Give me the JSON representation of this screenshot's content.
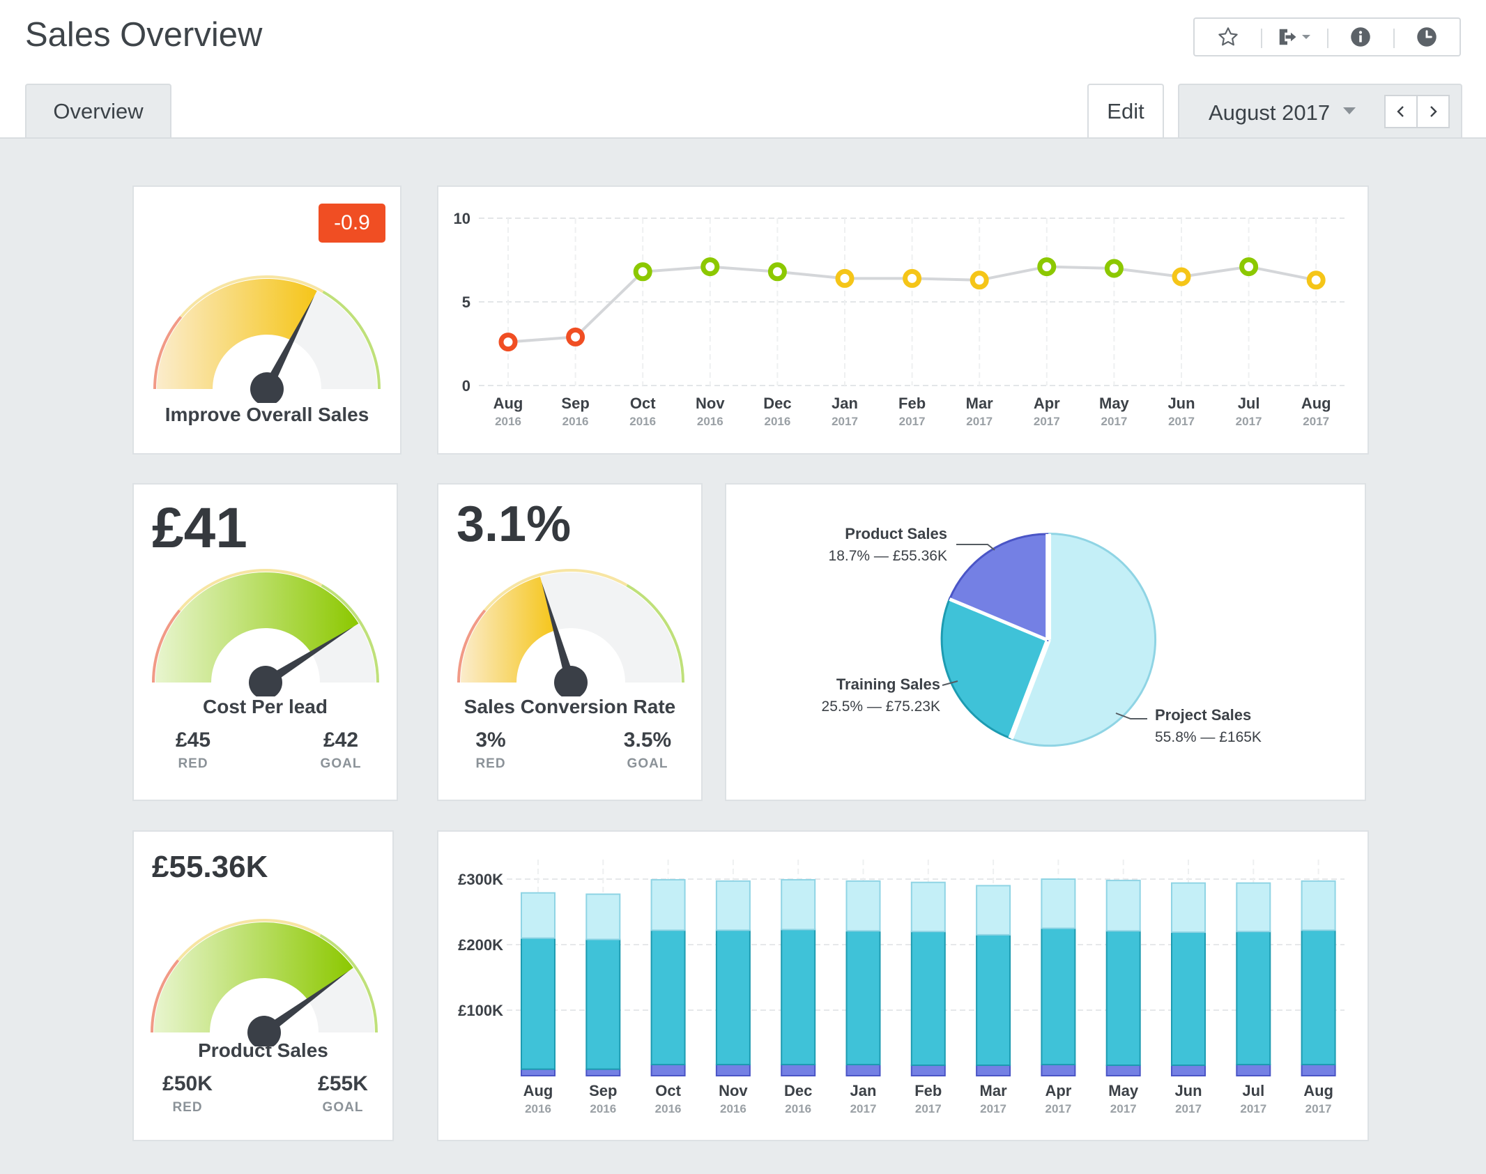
{
  "header": {
    "title": "Sales Overview",
    "toolbar": [
      {
        "icon": "star-icon"
      },
      {
        "icon": "export-icon"
      },
      {
        "icon": "info-icon"
      },
      {
        "icon": "clock-icon"
      }
    ]
  },
  "tabs": {
    "overview": "Overview"
  },
  "edit_label": "Edit",
  "period": {
    "label": "August 2017"
  },
  "months": [
    {
      "m": "Aug",
      "y": "2016"
    },
    {
      "m": "Sep",
      "y": "2016"
    },
    {
      "m": "Oct",
      "y": "2016"
    },
    {
      "m": "Nov",
      "y": "2016"
    },
    {
      "m": "Dec",
      "y": "2016"
    },
    {
      "m": "Jan",
      "y": "2017"
    },
    {
      "m": "Feb",
      "y": "2017"
    },
    {
      "m": "Mar",
      "y": "2017"
    },
    {
      "m": "Apr",
      "y": "2017"
    },
    {
      "m": "May",
      "y": "2017"
    },
    {
      "m": "Jun",
      "y": "2017"
    },
    {
      "m": "Jul",
      "y": "2017"
    },
    {
      "m": "Aug",
      "y": "2017"
    }
  ],
  "kpis": {
    "improve": {
      "label": "Improve Overall Sales",
      "badge": "-0.9",
      "fraction": 0.65
    },
    "cpl": {
      "value": "£41",
      "label": "Cost Per lead",
      "red_value": "£45",
      "red_label": "RED",
      "goal_value": "£42",
      "goal_label": "GOAL",
      "fraction": 0.82
    },
    "conv": {
      "value": "3.1%",
      "label": "Sales Conversion Rate",
      "red_value": "3%",
      "red_label": "RED",
      "goal_value": "3.5%",
      "goal_label": "GOAL",
      "fraction": 0.41
    },
    "product": {
      "value": "£55.36K",
      "label": "Product Sales",
      "red_value": "£50K",
      "red_label": "RED",
      "goal_value": "£55K",
      "goal_label": "GOAL",
      "fraction": 0.8
    }
  },
  "colors": {
    "red": "#f04e23",
    "yellow": "#f5c518",
    "green": "#8cc800",
    "project": "#c4eff7",
    "training": "#3fc2d8",
    "product": "#7480e4",
    "needle": "#3a3f47",
    "line": "#d4d6d9"
  },
  "chart_data": [
    {
      "type": "line",
      "title": "",
      "categories": [
        "Aug 2016",
        "Sep 2016",
        "Oct 2016",
        "Nov 2016",
        "Dec 2016",
        "Jan 2017",
        "Feb 2017",
        "Mar 2017",
        "Apr 2017",
        "May 2017",
        "Jun 2017",
        "Jul 2017",
        "Aug 2017"
      ],
      "values": [
        2.6,
        2.9,
        6.8,
        7.1,
        6.8,
        6.4,
        6.4,
        6.3,
        7.1,
        7.0,
        6.5,
        7.1,
        6.3
      ],
      "point_status": [
        "red",
        "red",
        "green",
        "green",
        "green",
        "yellow",
        "yellow",
        "yellow",
        "green",
        "green",
        "yellow",
        "green",
        "yellow"
      ],
      "ylim": [
        0,
        10
      ],
      "yticks": [
        {
          "v": 0,
          "label": "0"
        },
        {
          "v": 5,
          "label": "5"
        },
        {
          "v": 10,
          "label": "10"
        }
      ]
    },
    {
      "type": "pie",
      "slices": [
        {
          "name": "Project Sales",
          "detail": "55.8% — £165K",
          "percent": 55.8,
          "color": "#c4eff7",
          "stroke": "#8fd4e4"
        },
        {
          "name": "Training Sales",
          "detail": "25.5% — £75.23K",
          "percent": 25.5,
          "color": "#3fc2d8",
          "stroke": "#1d9bb1"
        },
        {
          "name": "Product Sales",
          "detail": "18.7% — £55.36K",
          "percent": 18.7,
          "color": "#7480e4",
          "stroke": "#4a55c6"
        }
      ]
    },
    {
      "type": "bar",
      "stacked": true,
      "categories": [
        "Aug 2016",
        "Sep 2016",
        "Oct 2016",
        "Nov 2016",
        "Dec 2016",
        "Jan 2017",
        "Feb 2017",
        "Mar 2017",
        "Apr 2017",
        "May 2017",
        "Jun 2017",
        "Jul 2017",
        "Aug 2017"
      ],
      "series": [
        {
          "name": "Product Sales",
          "color": "#7480e4",
          "values": [
            10,
            10,
            17,
            17,
            17,
            17,
            16,
            16,
            17,
            16,
            16,
            17,
            17
          ]
        },
        {
          "name": "Training Sales",
          "color": "#3fc2d8",
          "values": [
            200,
            198,
            205,
            205,
            206,
            204,
            204,
            199,
            208,
            205,
            203,
            203,
            205
          ]
        },
        {
          "name": "Project Sales",
          "color": "#c4eff7",
          "values": [
            69,
            69,
            77,
            75,
            76,
            76,
            75,
            75,
            75,
            77,
            75,
            74,
            75
          ]
        }
      ],
      "ylim": [
        0,
        300
      ],
      "yticks": [
        {
          "v": 100,
          "label": "£100K"
        },
        {
          "v": 200,
          "label": "£200K"
        },
        {
          "v": 300,
          "label": "£300K"
        }
      ]
    }
  ]
}
